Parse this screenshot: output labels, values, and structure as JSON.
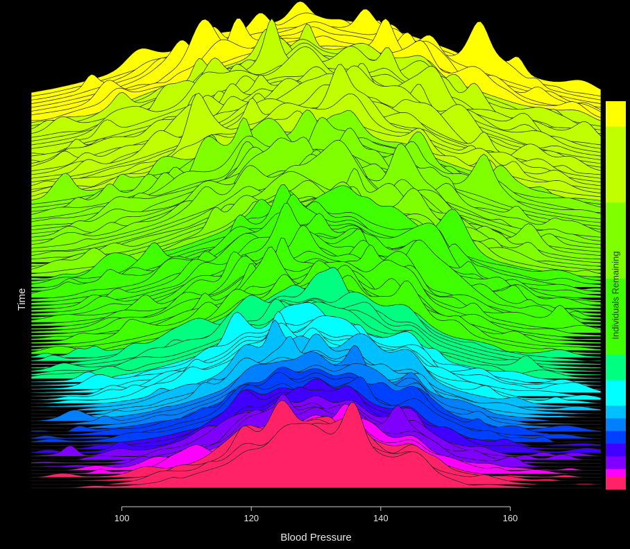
{
  "chart_data": {
    "type": "area",
    "subtype": "ridgeline",
    "xlabel": "Blood Pressure",
    "ylabel": "Time",
    "xticks": [
      100,
      120,
      140,
      160
    ],
    "xlim": [
      86,
      174
    ],
    "n_ridges": 110,
    "density_peaks_bp": [
      119,
      124.5,
      130,
      135.5,
      145
    ],
    "colorbar": {
      "label": "Individuals Remaining",
      "colors_top_to_bottom": [
        "#ffff00",
        "#bfff00",
        "#7fff00",
        "#40ff00",
        "#00ff80",
        "#00ffff",
        "#00bfff",
        "#0080ff",
        "#0040ff",
        "#4000ff",
        "#8000ff",
        "#ff00ff",
        "#ff2266"
      ],
      "band_weights": [
        1,
        3,
        3,
        3,
        1,
        1,
        0.5,
        0.5,
        0.5,
        0.5,
        0.5,
        0.3,
        0.5
      ]
    }
  }
}
